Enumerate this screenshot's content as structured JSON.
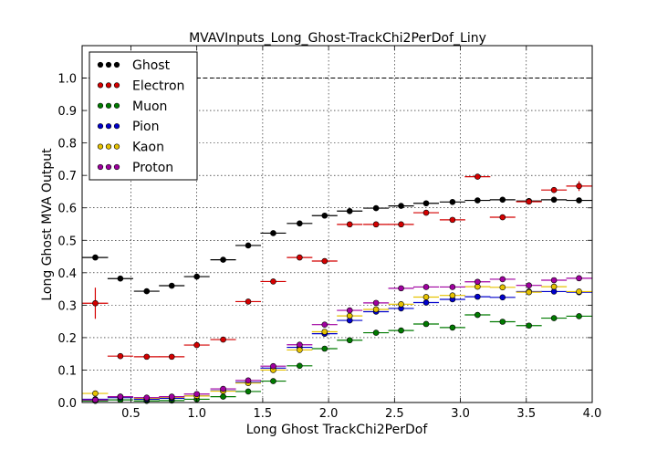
{
  "chart_data": {
    "type": "scatter",
    "title": "MVAVInputs_Long_Ghost-TrackChi2PerDof_Liny",
    "xlabel": "Long Ghost TrackChi2PerDof",
    "ylabel": "Long Ghost MVA Output",
    "xlim": [
      0.13,
      4.0
    ],
    "ylim": [
      0.0,
      1.1
    ],
    "x_ticks": [
      "0.5",
      "1.0",
      "1.5",
      "2.0",
      "2.5",
      "3.0",
      "3.5",
      "4.0"
    ],
    "y_ticks": [
      "0.0",
      "0.1",
      "0.2",
      "0.3",
      "0.4",
      "0.5",
      "0.6",
      "0.7",
      "0.8",
      "0.9",
      "1.0"
    ],
    "grid": true,
    "legend_position": "top-left",
    "reference_line": 1.0,
    "bin_half_width": 0.097,
    "x": [
      0.23,
      0.42,
      0.62,
      0.81,
      1.0,
      1.2,
      1.39,
      1.58,
      1.78,
      1.97,
      2.16,
      2.36,
      2.55,
      2.74,
      2.94,
      3.13,
      3.32,
      3.52,
      3.71,
      3.9
    ],
    "series": [
      {
        "name": "Ghost",
        "color": "#000000",
        "values": [
          0.447,
          0.382,
          0.343,
          0.36,
          0.388,
          0.44,
          0.484,
          0.522,
          0.552,
          0.576,
          0.59,
          0.599,
          0.606,
          0.614,
          0.618,
          0.623,
          0.625,
          0.621,
          0.625,
          0.623
        ],
        "err": [
          0.008,
          0.004,
          0.003,
          0.003,
          0.003,
          0.003,
          0.003,
          0.003,
          0.003,
          0.003,
          0.003,
          0.003,
          0.003,
          0.003,
          0.003,
          0.003,
          0.003,
          0.003,
          0.003,
          0.003
        ]
      },
      {
        "name": "Electron",
        "color": "#d40000",
        "values": [
          0.306,
          0.143,
          0.141,
          0.141,
          0.177,
          0.194,
          0.311,
          0.373,
          0.447,
          0.436,
          0.549,
          0.549,
          0.549,
          0.585,
          0.563,
          0.696,
          0.571,
          0.619,
          0.655,
          0.667
        ],
        "err": [
          0.048,
          0.004,
          0.004,
          0.004,
          0.004,
          0.005,
          0.005,
          0.005,
          0.005,
          0.005,
          0.005,
          0.005,
          0.005,
          0.006,
          0.007,
          0.005,
          0.008,
          0.008,
          0.008,
          0.015
        ]
      },
      {
        "name": "Muon",
        "color": "#007a00",
        "values": [
          0.005,
          0.008,
          0.005,
          0.006,
          0.01,
          0.018,
          0.034,
          0.066,
          0.113,
          0.166,
          0.192,
          0.215,
          0.222,
          0.242,
          0.231,
          0.27,
          0.249,
          0.237,
          0.26,
          0.266
        ],
        "err": [
          0.002,
          0.002,
          0.002,
          0.002,
          0.002,
          0.002,
          0.002,
          0.002,
          0.002,
          0.002,
          0.002,
          0.002,
          0.002,
          0.002,
          0.002,
          0.002,
          0.002,
          0.002,
          0.002,
          0.002
        ]
      },
      {
        "name": "Pion",
        "color": "#0000cc",
        "values": [
          0.01,
          0.015,
          0.01,
          0.013,
          0.02,
          0.036,
          0.062,
          0.106,
          0.17,
          0.212,
          0.253,
          0.28,
          0.29,
          0.308,
          0.318,
          0.326,
          0.324,
          0.342,
          0.342,
          0.34
        ],
        "err": [
          0.002,
          0.002,
          0.002,
          0.002,
          0.002,
          0.002,
          0.002,
          0.002,
          0.002,
          0.002,
          0.002,
          0.002,
          0.002,
          0.002,
          0.002,
          0.002,
          0.002,
          0.002,
          0.002,
          0.002
        ]
      },
      {
        "name": "Kaon",
        "color": "#e6c200",
        "values": [
          0.028,
          0.018,
          0.013,
          0.016,
          0.02,
          0.035,
          0.06,
          0.1,
          0.162,
          0.218,
          0.267,
          0.287,
          0.303,
          0.325,
          0.33,
          0.357,
          0.355,
          0.34,
          0.357,
          0.342
        ],
        "err": [
          0.002,
          0.002,
          0.002,
          0.002,
          0.002,
          0.002,
          0.002,
          0.002,
          0.002,
          0.002,
          0.002,
          0.002,
          0.002,
          0.002,
          0.002,
          0.002,
          0.002,
          0.002,
          0.002,
          0.002
        ]
      },
      {
        "name": "Proton",
        "color": "#a000a0",
        "values": [
          0.008,
          0.018,
          0.015,
          0.018,
          0.026,
          0.042,
          0.068,
          0.112,
          0.178,
          0.24,
          0.284,
          0.307,
          0.352,
          0.356,
          0.356,
          0.372,
          0.38,
          0.361,
          0.377,
          0.383
        ],
        "err": [
          0.002,
          0.002,
          0.002,
          0.002,
          0.002,
          0.002,
          0.002,
          0.002,
          0.002,
          0.002,
          0.002,
          0.002,
          0.002,
          0.002,
          0.002,
          0.002,
          0.002,
          0.002,
          0.002,
          0.002
        ]
      }
    ]
  }
}
